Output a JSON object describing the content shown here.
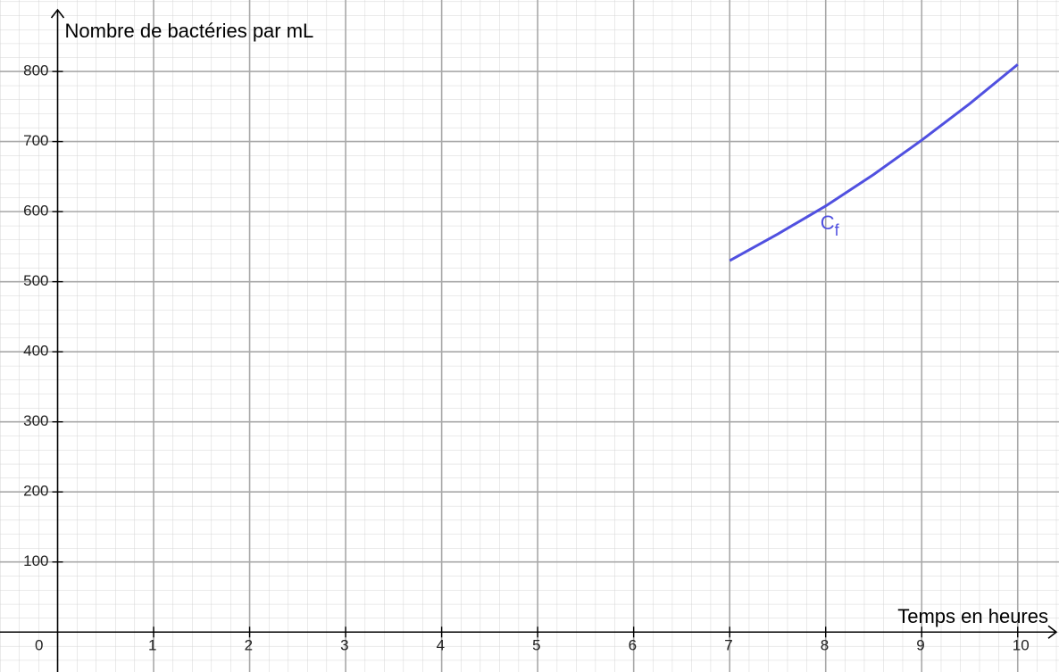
{
  "chart_data": {
    "type": "line",
    "xlabel": "Temps en heures",
    "ylabel": "Nombre de bactéries par mL",
    "annotation": {
      "main": "C",
      "sub": "f"
    },
    "origin_label": "0",
    "series": [
      {
        "color": "#5050e0",
        "x": [
          7,
          7.5,
          8,
          8.5,
          9,
          9.5,
          10
        ],
        "values": [
          530,
          568,
          608,
          653,
          702,
          754,
          810
        ]
      }
    ],
    "xlim": [
      -0.6,
      10.43
    ],
    "ylim": [
      -57,
      902
    ],
    "xticks": [
      1,
      2,
      3,
      4,
      5,
      6,
      7,
      8,
      9,
      10
    ],
    "yticks": [
      100,
      200,
      300,
      400,
      500,
      600,
      700,
      800
    ],
    "grid": true
  }
}
